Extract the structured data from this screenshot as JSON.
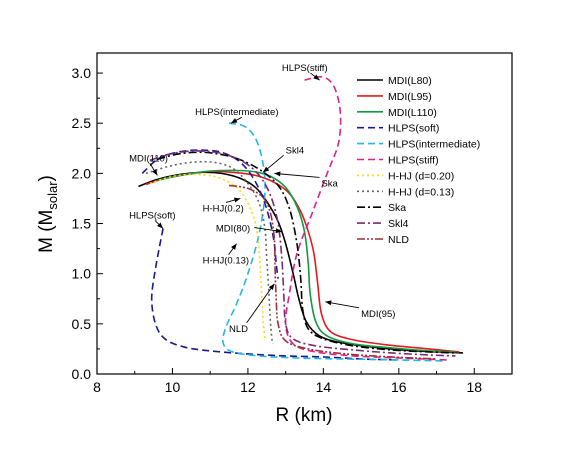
{
  "chart_data": {
    "type": "line",
    "xlabel": "R (km)",
    "ylabel_main": "M (M",
    "ylabel_sub": "solar",
    "ylabel_close": ")",
    "xlim": [
      8,
      19
    ],
    "ylim": [
      0,
      3.2
    ],
    "x_ticks": [
      8,
      10,
      12,
      14,
      16,
      18
    ],
    "y_ticks": [
      0.0,
      0.5,
      1.0,
      1.5,
      2.0,
      2.5,
      3.0
    ],
    "x_tick_labels": [
      "8",
      "10",
      "12",
      "14",
      "16",
      "18"
    ],
    "y_tick_labels": [
      "0.0",
      "0.5",
      "1.0",
      "1.5",
      "2.0",
      "2.5",
      "3.0"
    ],
    "legend_position": "top-right",
    "series": [
      {
        "name": "MDI(L80)",
        "color": "#000000",
        "dash": "solid",
        "points": [
          [
            9.1,
            1.87
          ],
          [
            9.6,
            1.94
          ],
          [
            10.2,
            1.99
          ],
          [
            10.8,
            2.01
          ],
          [
            11.3,
            2.0
          ],
          [
            11.8,
            1.95
          ],
          [
            12.2,
            1.86
          ],
          [
            12.5,
            1.72
          ],
          [
            12.8,
            1.52
          ],
          [
            13.0,
            1.3
          ],
          [
            13.2,
            1.0
          ],
          [
            13.35,
            0.75
          ],
          [
            13.55,
            0.52
          ],
          [
            13.9,
            0.38
          ],
          [
            14.5,
            0.31
          ],
          [
            15.5,
            0.26
          ],
          [
            16.5,
            0.23
          ],
          [
            17.7,
            0.21
          ]
        ]
      },
      {
        "name": "MDI(L95)",
        "color": "#e31a1c",
        "dash": "solid",
        "points": [
          [
            9.3,
            1.89
          ],
          [
            9.8,
            1.95
          ],
          [
            10.4,
            1.99
          ],
          [
            11.0,
            2.02
          ],
          [
            11.6,
            2.01
          ],
          [
            12.2,
            1.98
          ],
          [
            12.7,
            1.91
          ],
          [
            13.1,
            1.8
          ],
          [
            13.4,
            1.62
          ],
          [
            13.6,
            1.42
          ],
          [
            13.75,
            1.2
          ],
          [
            13.85,
            0.9
          ],
          [
            13.95,
            0.6
          ],
          [
            14.2,
            0.42
          ],
          [
            14.8,
            0.34
          ],
          [
            15.7,
            0.29
          ],
          [
            16.8,
            0.25
          ],
          [
            17.6,
            0.22
          ]
        ]
      },
      {
        "name": "MDI(L110)",
        "color": "#119944",
        "dash": "solid",
        "points": [
          [
            9.6,
            1.93
          ],
          [
            10.2,
            1.98
          ],
          [
            10.9,
            2.02
          ],
          [
            11.5,
            2.03
          ],
          [
            12.1,
            2.02
          ],
          [
            12.6,
            1.97
          ],
          [
            13.0,
            1.86
          ],
          [
            13.3,
            1.67
          ],
          [
            13.5,
            1.42
          ],
          [
            13.6,
            1.1
          ],
          [
            13.65,
            0.8
          ],
          [
            13.8,
            0.52
          ],
          [
            14.1,
            0.38
          ],
          [
            14.8,
            0.3
          ],
          [
            15.8,
            0.26
          ],
          [
            16.8,
            0.23
          ],
          [
            17.5,
            0.22
          ]
        ]
      },
      {
        "name": "HLPS(soft)",
        "color": "#1a1a8c",
        "dash": "7,4",
        "points": [
          [
            9.2,
            2.0
          ],
          [
            9.6,
            2.14
          ],
          [
            10.0,
            2.2
          ],
          [
            10.5,
            2.23
          ],
          [
            10.9,
            2.23
          ],
          [
            11.3,
            2.21
          ],
          [
            11.7,
            2.14
          ],
          [
            12.0,
            2.03
          ],
          [
            12.25,
            1.88
          ],
          [
            12.45,
            1.7
          ],
          [
            12.6,
            1.5
          ],
          [
            12.7,
            1.3
          ],
          [
            12.75,
            1.1
          ],
          [
            12.8,
            0.95
          ]
        ]
      },
      {
        "name": "HLPS(soft)-low",
        "color": "#1a1a8c",
        "dash": "7,4",
        "points": [
          [
            9.75,
            1.45
          ],
          [
            9.55,
            1.05
          ],
          [
            9.45,
            0.75
          ],
          [
            9.55,
            0.5
          ],
          [
            9.8,
            0.35
          ],
          [
            10.3,
            0.27
          ],
          [
            11.0,
            0.23
          ],
          [
            12.0,
            0.2
          ],
          [
            13.0,
            0.18
          ],
          [
            14.0,
            0.17
          ],
          [
            15.0,
            0.15
          ],
          [
            16.0,
            0.14
          ]
        ]
      },
      {
        "name": "HLPS(intermediate)",
        "color": "#22b8e6",
        "dash": "7,4",
        "points": [
          [
            11.5,
            2.5
          ],
          [
            11.9,
            2.47
          ],
          [
            12.2,
            2.35
          ],
          [
            12.4,
            2.1
          ],
          [
            12.45,
            1.8
          ],
          [
            12.3,
            1.4
          ],
          [
            12.0,
            1.0
          ],
          [
            11.7,
            0.7
          ],
          [
            11.4,
            0.45
          ],
          [
            11.35,
            0.3
          ],
          [
            11.6,
            0.22
          ],
          [
            12.3,
            0.18
          ],
          [
            13.3,
            0.16
          ],
          [
            14.5,
            0.15
          ],
          [
            16.0,
            0.14
          ],
          [
            17.2,
            0.13
          ]
        ]
      },
      {
        "name": "HLPS(stiff)",
        "color": "#e0218a",
        "dash": "7,4",
        "points": [
          [
            13.5,
            2.93
          ],
          [
            14.0,
            2.96
          ],
          [
            14.3,
            2.85
          ],
          [
            14.45,
            2.6
          ],
          [
            14.4,
            2.3
          ],
          [
            14.1,
            2.0
          ],
          [
            13.7,
            1.6
          ],
          [
            13.3,
            1.2
          ],
          [
            13.1,
            0.8
          ],
          [
            13.0,
            0.5
          ],
          [
            13.2,
            0.3
          ],
          [
            13.8,
            0.22
          ],
          [
            14.8,
            0.18
          ],
          [
            16.0,
            0.16
          ],
          [
            17.3,
            0.14
          ]
        ]
      },
      {
        "name": "H-HJ (d=0.20)",
        "color": "#f2de1a",
        "dash": "2,3",
        "points": [
          [
            9.4,
            1.9
          ],
          [
            10.0,
            1.97
          ],
          [
            10.6,
            1.99
          ],
          [
            11.2,
            1.96
          ],
          [
            11.7,
            1.86
          ],
          [
            12.0,
            1.7
          ],
          [
            12.2,
            1.5
          ],
          [
            12.3,
            1.2
          ],
          [
            12.35,
            0.9
          ],
          [
            12.4,
            0.55
          ],
          [
            12.45,
            0.35
          ]
        ]
      },
      {
        "name": "H-HJ (d=0.13)",
        "color": "#666666",
        "dash": "2,3",
        "points": [
          [
            9.3,
            2.0
          ],
          [
            9.9,
            2.07
          ],
          [
            10.5,
            2.11
          ],
          [
            11.1,
            2.11
          ],
          [
            11.6,
            2.05
          ],
          [
            12.0,
            1.9
          ],
          [
            12.3,
            1.7
          ],
          [
            12.45,
            1.45
          ],
          [
            12.5,
            1.15
          ],
          [
            12.55,
            0.85
          ],
          [
            12.6,
            0.5
          ],
          [
            12.65,
            0.3
          ]
        ]
      },
      {
        "name": "Ska",
        "color": "#000000",
        "dash": "8,3,2,3",
        "points": [
          [
            9.6,
            2.14
          ],
          [
            10.1,
            2.19
          ],
          [
            10.6,
            2.21
          ],
          [
            11.1,
            2.2
          ],
          [
            11.7,
            2.15
          ],
          [
            12.3,
            2.04
          ],
          [
            12.8,
            1.88
          ],
          [
            13.1,
            1.65
          ],
          [
            13.3,
            1.3
          ],
          [
            13.4,
            0.95
          ],
          [
            13.45,
            0.65
          ],
          [
            13.6,
            0.45
          ],
          [
            14.0,
            0.35
          ],
          [
            14.8,
            0.28
          ],
          [
            15.8,
            0.24
          ],
          [
            16.8,
            0.22
          ],
          [
            17.5,
            0.21
          ]
        ]
      },
      {
        "name": "Skl4",
        "color": "#7a2a73",
        "dash": "8,3,2,3",
        "points": [
          [
            9.4,
            2.13
          ],
          [
            9.9,
            2.19
          ],
          [
            10.4,
            2.22
          ],
          [
            10.9,
            2.22
          ],
          [
            11.4,
            2.19
          ],
          [
            11.9,
            2.11
          ],
          [
            12.3,
            1.98
          ],
          [
            12.6,
            1.78
          ],
          [
            12.8,
            1.5
          ],
          [
            12.9,
            1.15
          ],
          [
            12.95,
            0.8
          ],
          [
            13.0,
            0.5
          ],
          [
            13.2,
            0.35
          ],
          [
            13.8,
            0.28
          ],
          [
            14.8,
            0.24
          ],
          [
            15.8,
            0.21
          ],
          [
            16.8,
            0.19
          ],
          [
            17.5,
            0.18
          ]
        ]
      },
      {
        "name": "NLD",
        "color": "#a0303a",
        "dash": "8,2,2,2,2,2",
        "points": [
          [
            11.5,
            1.88
          ],
          [
            12.0,
            1.85
          ],
          [
            12.4,
            1.76
          ],
          [
            12.6,
            1.6
          ],
          [
            12.7,
            1.35
          ],
          [
            12.72,
            1.05
          ],
          [
            12.75,
            0.75
          ],
          [
            12.8,
            0.5
          ],
          [
            13.0,
            0.33
          ],
          [
            13.6,
            0.25
          ],
          [
            14.6,
            0.2
          ],
          [
            15.8,
            0.17
          ],
          [
            17.0,
            0.15
          ]
        ]
      }
    ],
    "legend": [
      {
        "label": "MDI(L80)",
        "color": "#000000",
        "dash": "solid"
      },
      {
        "label": "MDI(L95)",
        "color": "#e31a1c",
        "dash": "solid"
      },
      {
        "label": "MDI(L110)",
        "color": "#119944",
        "dash": "solid"
      },
      {
        "label": "HLPS(soft)",
        "color": "#1a1a8c",
        "dash": "7,4"
      },
      {
        "label": "HLPS(intermediate)",
        "color": "#22b8e6",
        "dash": "7,4"
      },
      {
        "label": "HLPS(stiff)",
        "color": "#e0218a",
        "dash": "7,4"
      },
      {
        "label": "H-HJ (d=0.20)",
        "color": "#f2de1a",
        "dash": "2,3"
      },
      {
        "label": "H-HJ (d=0.13)",
        "color": "#666666",
        "dash": "2,3"
      },
      {
        "label": "Ska",
        "color": "#000000",
        "dash": "8,3,2,3"
      },
      {
        "label": "Skl4",
        "color": "#7a2a73",
        "dash": "8,3,2,3"
      },
      {
        "label": "NLD",
        "color": "#a0303a",
        "dash": "8,2,2,2,2,2"
      }
    ],
    "annotations": [
      {
        "text": "HLPS(stiff)",
        "tx": 12.9,
        "ty": 3.02,
        "ax": 13.9,
        "ay": 2.93
      },
      {
        "text": "HLPS(intermediate)",
        "tx": 10.6,
        "ty": 2.58,
        "ax": 11.55,
        "ay": 2.5
      },
      {
        "text": "MDI(110)",
        "tx": 8.85,
        "ty": 2.12,
        "ax": 9.6,
        "ay": 1.98
      },
      {
        "text": "Skl4",
        "tx": 13.0,
        "ty": 2.2,
        "ax": 12.4,
        "ay": 2.01
      },
      {
        "text": "Ska",
        "tx": 13.95,
        "ty": 1.87,
        "ax": 12.7,
        "ay": 2.0
      },
      {
        "text": "H-HJ(0.2)",
        "tx": 10.8,
        "ty": 1.62,
        "ax": 11.8,
        "ay": 1.75
      },
      {
        "text": "HLPS(soft)",
        "tx": 8.85,
        "ty": 1.55,
        "ax": 9.75,
        "ay": 1.45
      },
      {
        "text": "MDI(80)",
        "tx": 11.15,
        "ty": 1.42,
        "ax": 12.9,
        "ay": 1.42
      },
      {
        "text": "H-HJ(0.13)",
        "tx": 10.8,
        "ty": 1.1,
        "ax": 11.7,
        "ay": 1.3
      },
      {
        "text": "NLD",
        "tx": 11.5,
        "ty": 0.42,
        "ax": 12.7,
        "ay": 0.9
      },
      {
        "text": "MDI(95)",
        "tx": 15.0,
        "ty": 0.57,
        "ax": 14.05,
        "ay": 0.72
      }
    ]
  }
}
